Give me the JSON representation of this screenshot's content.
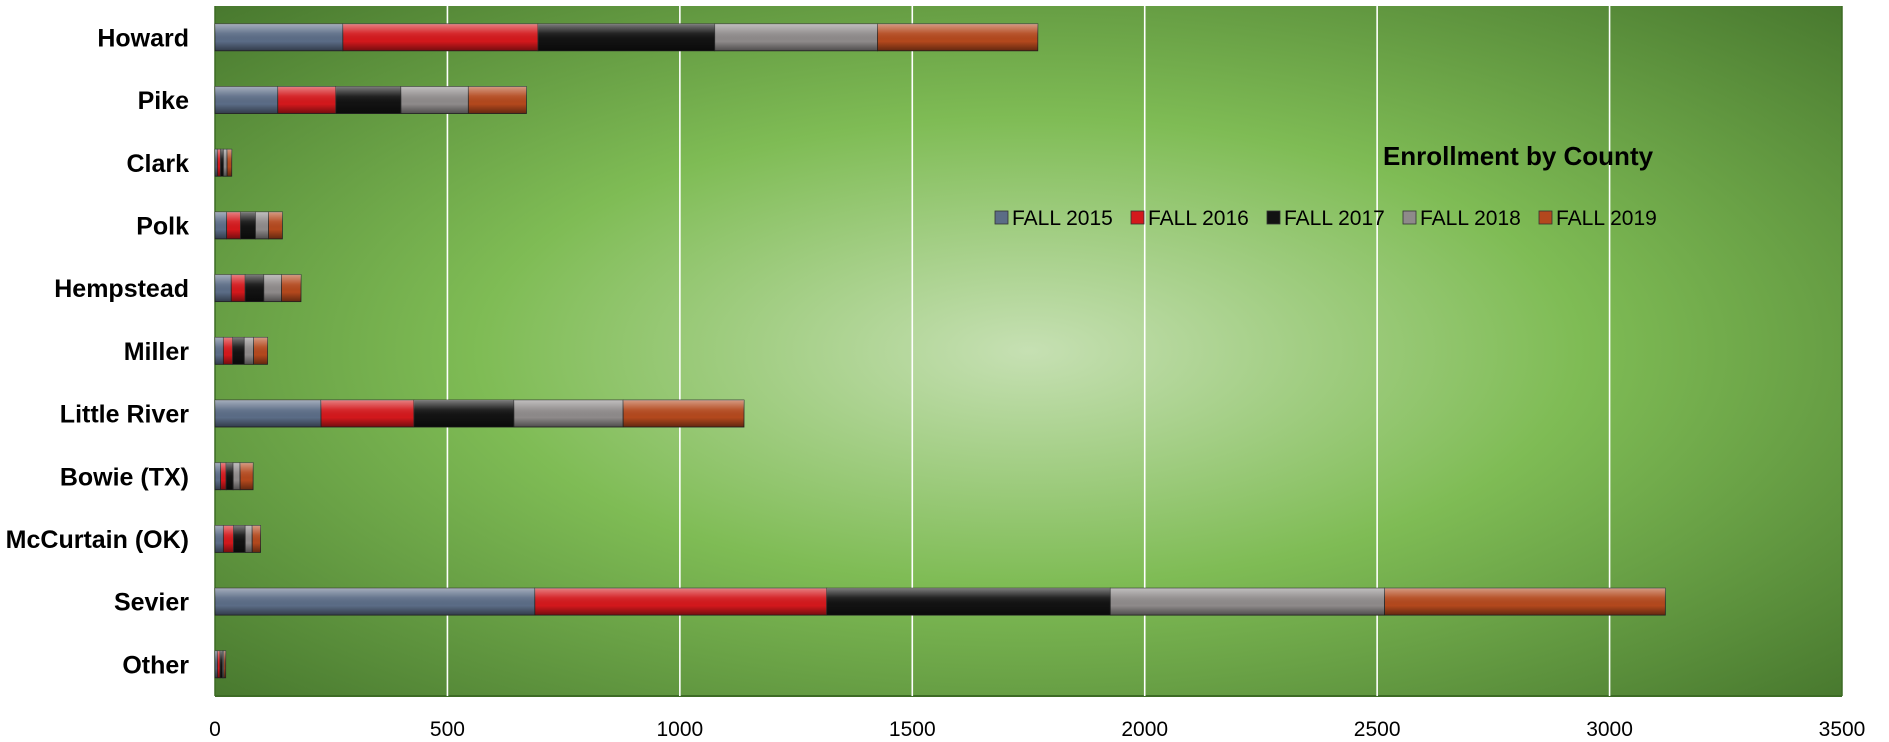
{
  "chart_data": {
    "type": "bar",
    "orientation": "horizontal",
    "stacked": true,
    "title": "Enrollment by County",
    "legend_position": "upper-right inside plot",
    "grid": true,
    "xlim": [
      0,
      3500
    ],
    "x_ticks": [
      "0",
      "500",
      "1000",
      "1500",
      "2000",
      "2500",
      "3000",
      "3500"
    ],
    "categories": [
      "Howard",
      "Pike",
      "Clark",
      "Polk",
      "Hempstead",
      "Miller",
      "Little River",
      "Bowie (TX)",
      "McCurtain (OK)",
      "Sevier",
      "Other"
    ],
    "series": [
      {
        "name": "FALL 2015",
        "color": "#5b6c86",
        "values": [
          275,
          135,
          5,
          25,
          35,
          18,
          228,
          12,
          18,
          688,
          5
        ]
      },
      {
        "name": "FALL 2016",
        "color": "#d3181c",
        "values": [
          420,
          125,
          7,
          30,
          30,
          20,
          200,
          12,
          22,
          628,
          6
        ]
      },
      {
        "name": "FALL 2017",
        "color": "#121212",
        "values": [
          380,
          140,
          6,
          32,
          40,
          25,
          215,
          15,
          25,
          610,
          5
        ]
      },
      {
        "name": "FALL 2018",
        "color": "#8e8a8a",
        "values": [
          350,
          145,
          8,
          28,
          38,
          20,
          235,
          15,
          15,
          590,
          3
        ]
      },
      {
        "name": "FALL 2019",
        "color": "#b3481d",
        "values": [
          345,
          125,
          10,
          30,
          42,
          30,
          260,
          28,
          18,
          604,
          4
        ]
      }
    ]
  }
}
